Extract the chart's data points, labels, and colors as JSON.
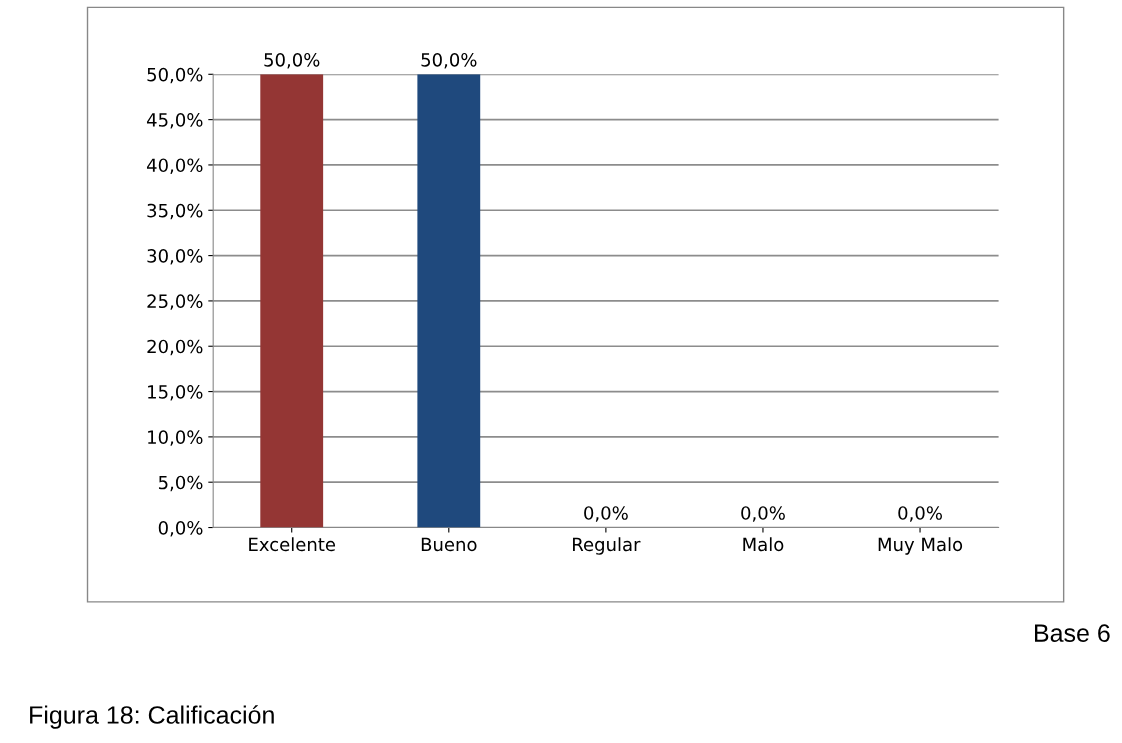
{
  "chart_data": {
    "type": "bar",
    "categories": [
      "Excelente",
      "Bueno",
      "Regular",
      "Malo",
      "Muy Malo"
    ],
    "values": [
      50,
      50,
      0,
      0,
      0
    ],
    "colors": [
      "#943634",
      "#1f497d",
      "#000000",
      "#b65708",
      "#5f7530"
    ],
    "value_labels": [
      "50,0%",
      "50,0%",
      "0,0%",
      "0,0%",
      "0,0%"
    ],
    "ylim": [
      0,
      50
    ],
    "yticks": [
      {
        "value": 0,
        "label": "0,0%"
      },
      {
        "value": 5,
        "label": "5,0%"
      },
      {
        "value": 10,
        "label": "10,0%"
      },
      {
        "value": 15,
        "label": "15,0%"
      },
      {
        "value": 20,
        "label": "20,0%"
      },
      {
        "value": 25,
        "label": "25,0%"
      },
      {
        "value": 30,
        "label": "30,0%"
      },
      {
        "value": 35,
        "label": "35,0%"
      },
      {
        "value": 40,
        "label": "40,0%"
      },
      {
        "value": 45,
        "label": "45,0%"
      },
      {
        "value": 50,
        "label": "50,0%"
      }
    ],
    "grid": "y",
    "annotations": [
      "Base 6",
      "Figura 18: Calificación"
    ]
  }
}
